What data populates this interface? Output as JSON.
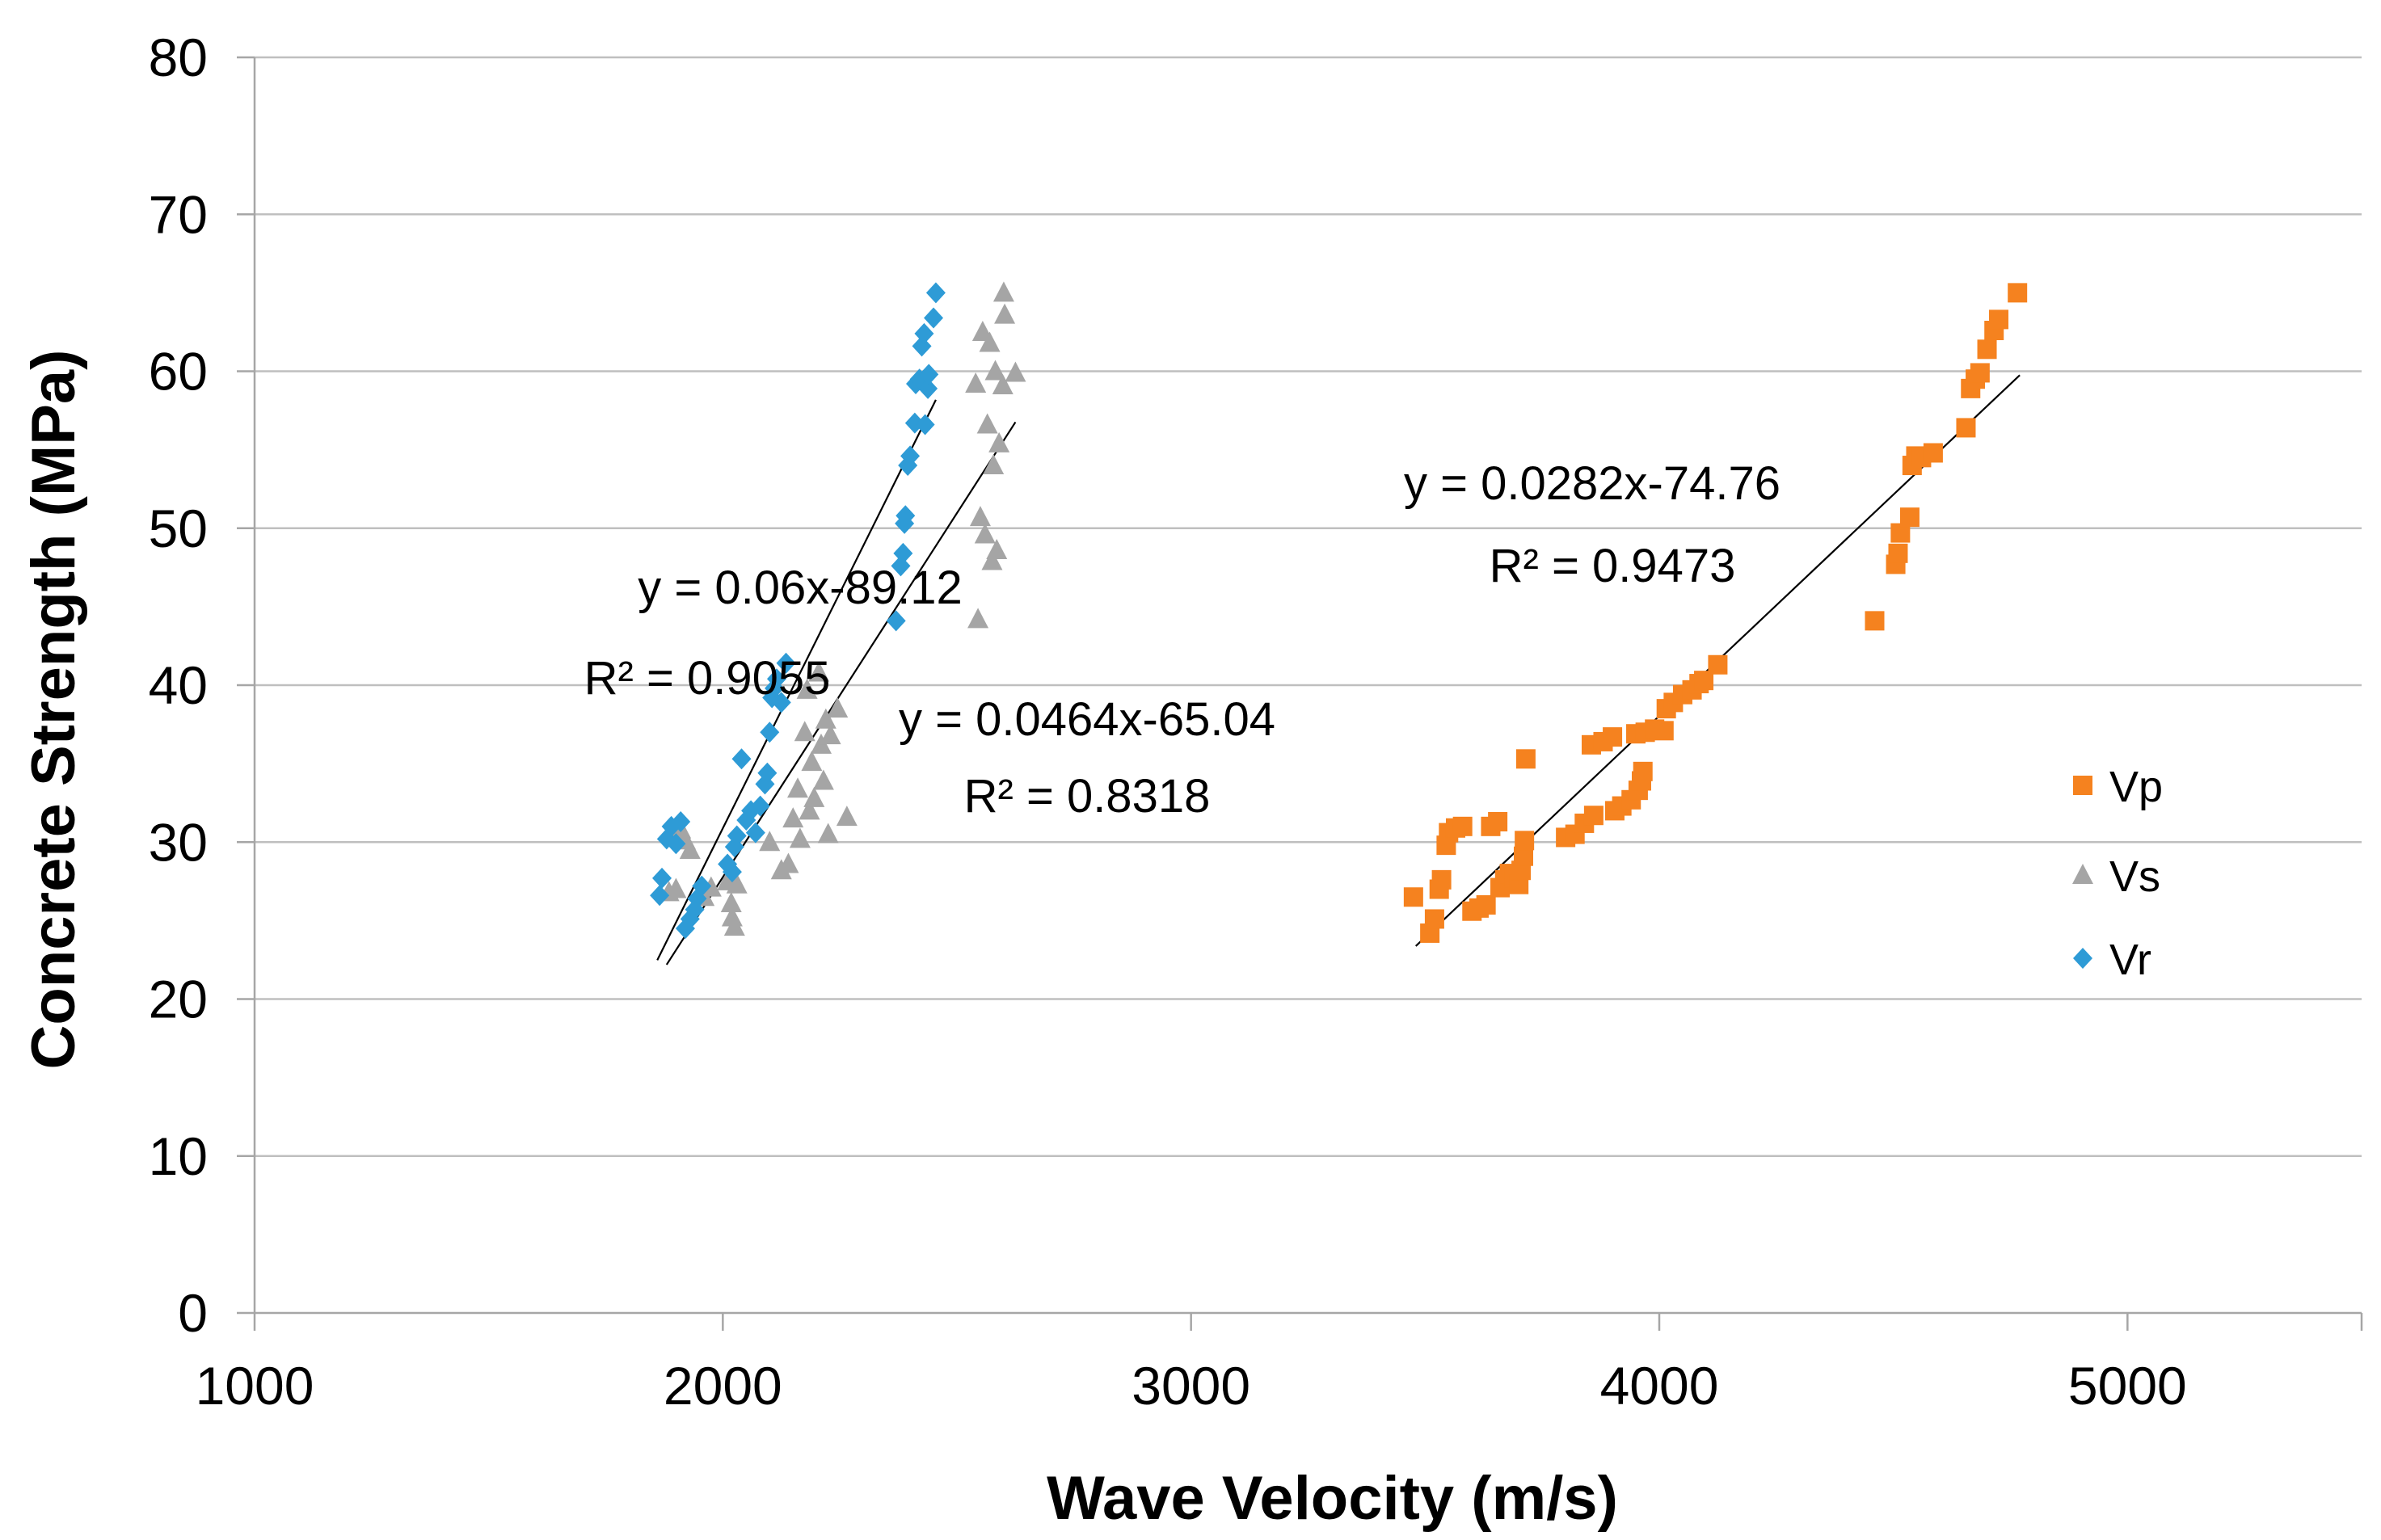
{
  "chart_data": {
    "type": "scatter",
    "xlabel": "Wave Velocity (m/s)",
    "ylabel": "Concrete Strength (MPa)",
    "xlim": [
      1000,
      5500
    ],
    "ylim": [
      0,
      80
    ],
    "xticks": [
      1000,
      2000,
      3000,
      4000,
      5000
    ],
    "yticks": [
      0,
      10,
      20,
      30,
      40,
      50,
      60,
      70,
      80
    ],
    "grid": "horizontal",
    "legend_position": "right",
    "series": [
      {
        "name": "Vp",
        "color": "#F5821F",
        "marker": "square",
        "points": [
          [
            3475,
            26.5
          ],
          [
            3510,
            24.2
          ],
          [
            3520,
            25.1
          ],
          [
            3530,
            27.0
          ],
          [
            3535,
            27.6
          ],
          [
            3545,
            29.8
          ],
          [
            3550,
            30.6
          ],
          [
            3565,
            30.9
          ],
          [
            3580,
            31.0
          ],
          [
            3600,
            25.6
          ],
          [
            3615,
            25.8
          ],
          [
            3630,
            26.0
          ],
          [
            3640,
            31.0
          ],
          [
            3655,
            31.3
          ],
          [
            3660,
            27.1
          ],
          [
            3670,
            27.6
          ],
          [
            3680,
            28.0
          ],
          [
            3690,
            27.7
          ],
          [
            3700,
            27.3
          ],
          [
            3705,
            28.2
          ],
          [
            3710,
            29.1
          ],
          [
            3712,
            30.1
          ],
          [
            3715,
            35.3
          ],
          [
            3800,
            30.3
          ],
          [
            3820,
            30.5
          ],
          [
            3840,
            31.2
          ],
          [
            3860,
            31.7
          ],
          [
            3855,
            36.2
          ],
          [
            3880,
            36.4
          ],
          [
            3900,
            36.7
          ],
          [
            3905,
            32.0
          ],
          [
            3920,
            32.3
          ],
          [
            3940,
            32.7
          ],
          [
            3950,
            36.9
          ],
          [
            3955,
            33.3
          ],
          [
            3962,
            33.9
          ],
          [
            3965,
            34.5
          ],
          [
            3970,
            37.0
          ],
          [
            3990,
            37.2
          ],
          [
            4010,
            37.1
          ],
          [
            4015,
            38.5
          ],
          [
            4030,
            38.9
          ],
          [
            4050,
            39.4
          ],
          [
            4070,
            39.7
          ],
          [
            4085,
            40.1
          ],
          [
            4095,
            40.3
          ],
          [
            4125,
            41.3
          ],
          [
            4460,
            44.1
          ],
          [
            4505,
            47.7
          ],
          [
            4510,
            48.4
          ],
          [
            4515,
            49.7
          ],
          [
            4535,
            50.7
          ],
          [
            4540,
            54.0
          ],
          [
            4548,
            54.6
          ],
          [
            4560,
            54.5
          ],
          [
            4585,
            54.8
          ],
          [
            4655,
            56.4
          ],
          [
            4665,
            58.9
          ],
          [
            4675,
            59.5
          ],
          [
            4685,
            59.9
          ],
          [
            4700,
            61.4
          ],
          [
            4715,
            62.6
          ],
          [
            4725,
            63.3
          ],
          [
            4765,
            65.0
          ]
        ]
      },
      {
        "name": "Vs",
        "color": "#A5A5A5",
        "marker": "triangle",
        "points": [
          [
            1885,
            26.8
          ],
          [
            1900,
            27.0
          ],
          [
            1910,
            30.8
          ],
          [
            1920,
            30.1
          ],
          [
            1930,
            29.5
          ],
          [
            1960,
            26.5
          ],
          [
            1975,
            27.1
          ],
          [
            2010,
            27.5
          ],
          [
            2018,
            26.1
          ],
          [
            2020,
            25.2
          ],
          [
            2025,
            24.6
          ],
          [
            2030,
            27.3
          ],
          [
            2100,
            30.0
          ],
          [
            2125,
            28.2
          ],
          [
            2140,
            28.6
          ],
          [
            2150,
            31.5
          ],
          [
            2160,
            33.4
          ],
          [
            2165,
            30.2
          ],
          [
            2175,
            37.0
          ],
          [
            2180,
            39.7
          ],
          [
            2185,
            32.0
          ],
          [
            2190,
            35.1
          ],
          [
            2195,
            32.8
          ],
          [
            2205,
            40.8
          ],
          [
            2210,
            36.2
          ],
          [
            2215,
            33.9
          ],
          [
            2220,
            37.8
          ],
          [
            2225,
            30.5
          ],
          [
            2230,
            36.8
          ],
          [
            2245,
            38.5
          ],
          [
            2265,
            31.6
          ],
          [
            2540,
            59.2
          ],
          [
            2545,
            44.2
          ],
          [
            2550,
            50.7
          ],
          [
            2555,
            62.5
          ],
          [
            2560,
            49.6
          ],
          [
            2565,
            56.6
          ],
          [
            2570,
            61.8
          ],
          [
            2575,
            47.9
          ],
          [
            2578,
            54.0
          ],
          [
            2582,
            60.0
          ],
          [
            2585,
            48.6
          ],
          [
            2590,
            55.4
          ],
          [
            2598,
            59.1
          ],
          [
            2600,
            65.0
          ],
          [
            2602,
            63.6
          ],
          [
            2625,
            59.9
          ]
        ]
      },
      {
        "name": "Vr",
        "color": "#2E9BD6",
        "marker": "diamond",
        "points": [
          [
            1865,
            26.6
          ],
          [
            1870,
            27.7
          ],
          [
            1880,
            30.2
          ],
          [
            1890,
            31.0
          ],
          [
            1900,
            29.9
          ],
          [
            1910,
            31.3
          ],
          [
            1920,
            24.5
          ],
          [
            1930,
            25.1
          ],
          [
            1940,
            25.7
          ],
          [
            1945,
            26.4
          ],
          [
            1955,
            27.2
          ],
          [
            2010,
            28.6
          ],
          [
            2020,
            28.1
          ],
          [
            2025,
            29.7
          ],
          [
            2030,
            30.4
          ],
          [
            2040,
            35.3
          ],
          [
            2050,
            31.4
          ],
          [
            2060,
            32.0
          ],
          [
            2070,
            30.6
          ],
          [
            2080,
            32.3
          ],
          [
            2090,
            33.7
          ],
          [
            2095,
            34.4
          ],
          [
            2100,
            37.0
          ],
          [
            2105,
            39.2
          ],
          [
            2110,
            39.8
          ],
          [
            2115,
            40.4
          ],
          [
            2125,
            38.9
          ],
          [
            2135,
            41.4
          ],
          [
            2370,
            44.1
          ],
          [
            2380,
            47.6
          ],
          [
            2385,
            48.4
          ],
          [
            2388,
            50.3
          ],
          [
            2390,
            50.8
          ],
          [
            2395,
            54.0
          ],
          [
            2400,
            54.6
          ],
          [
            2410,
            56.7
          ],
          [
            2412,
            59.2
          ],
          [
            2420,
            59.5
          ],
          [
            2425,
            61.6
          ],
          [
            2430,
            62.4
          ],
          [
            2432,
            56.6
          ],
          [
            2438,
            58.9
          ],
          [
            2440,
            59.8
          ],
          [
            2450,
            63.4
          ],
          [
            2455,
            65.0
          ]
        ]
      }
    ],
    "trendlines": [
      {
        "series": "Vr",
        "slope": 0.06,
        "intercept": -89.12,
        "x_range": [
          1860,
          2455
        ],
        "equation": "y = 0.06x-89.12",
        "r2": "R² = 0.9055"
      },
      {
        "series": "Vs",
        "slope": 0.0464,
        "intercept": -65.04,
        "x_range": [
          1880,
          2625
        ],
        "equation": "y = 0.0464x-65.04",
        "r2": "R² = 0.8318"
      },
      {
        "series": "Vp",
        "slope": 0.0282,
        "intercept": -74.76,
        "x_range": [
          3480,
          4770
        ],
        "equation": "y = 0.0282x-74.76",
        "r2": "R² = 0.9473"
      }
    ]
  }
}
